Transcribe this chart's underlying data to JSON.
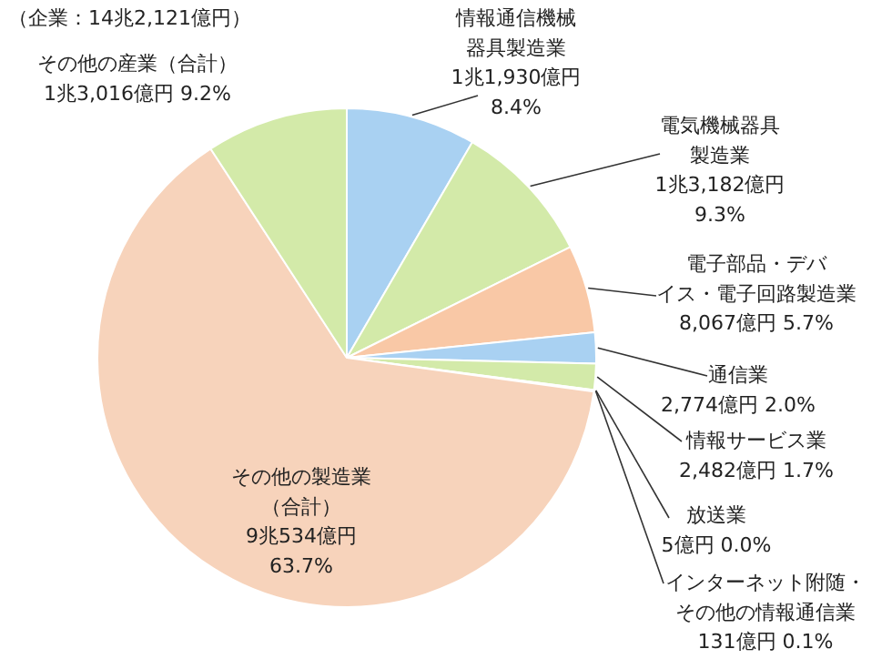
{
  "chart_data": {
    "type": "pie",
    "categories": [
      "情報通信機械器具製造業",
      "電気機械器具製造業",
      "電子部品・デバイス・電子回路製造業",
      "通信業",
      "情報サービス業",
      "放送業",
      "インターネット附随・その他の情報通信業",
      "その他の製造業（合計）",
      "その他の産業（合計）"
    ],
    "values": [
      8.4,
      9.3,
      5.7,
      2.0,
      1.7,
      0.0,
      0.1,
      63.7,
      9.2
    ],
    "value_labels": [
      "1兆1,930億円\n8.4%",
      "1兆3,182億円\n9.3%",
      "8,067億円 5.7%",
      "2,774億円 2.0%",
      "2,482億円 1.7%",
      "5億円 0.0%",
      "131億円 0.1%",
      "9兆534億円\n63.7%",
      "1兆3,016億円 9.2%"
    ],
    "colors": [
      "#a9d1f2",
      "#d3eaa9",
      "#f9c8a6",
      "#a9d1f2",
      "#d3eaa9",
      "#f9c8a6",
      "#a9d1f2",
      "#f7d3bb",
      "#d3eaa9"
    ],
    "annotations": [
      "（企業：14兆2,121億円）"
    ]
  }
}
